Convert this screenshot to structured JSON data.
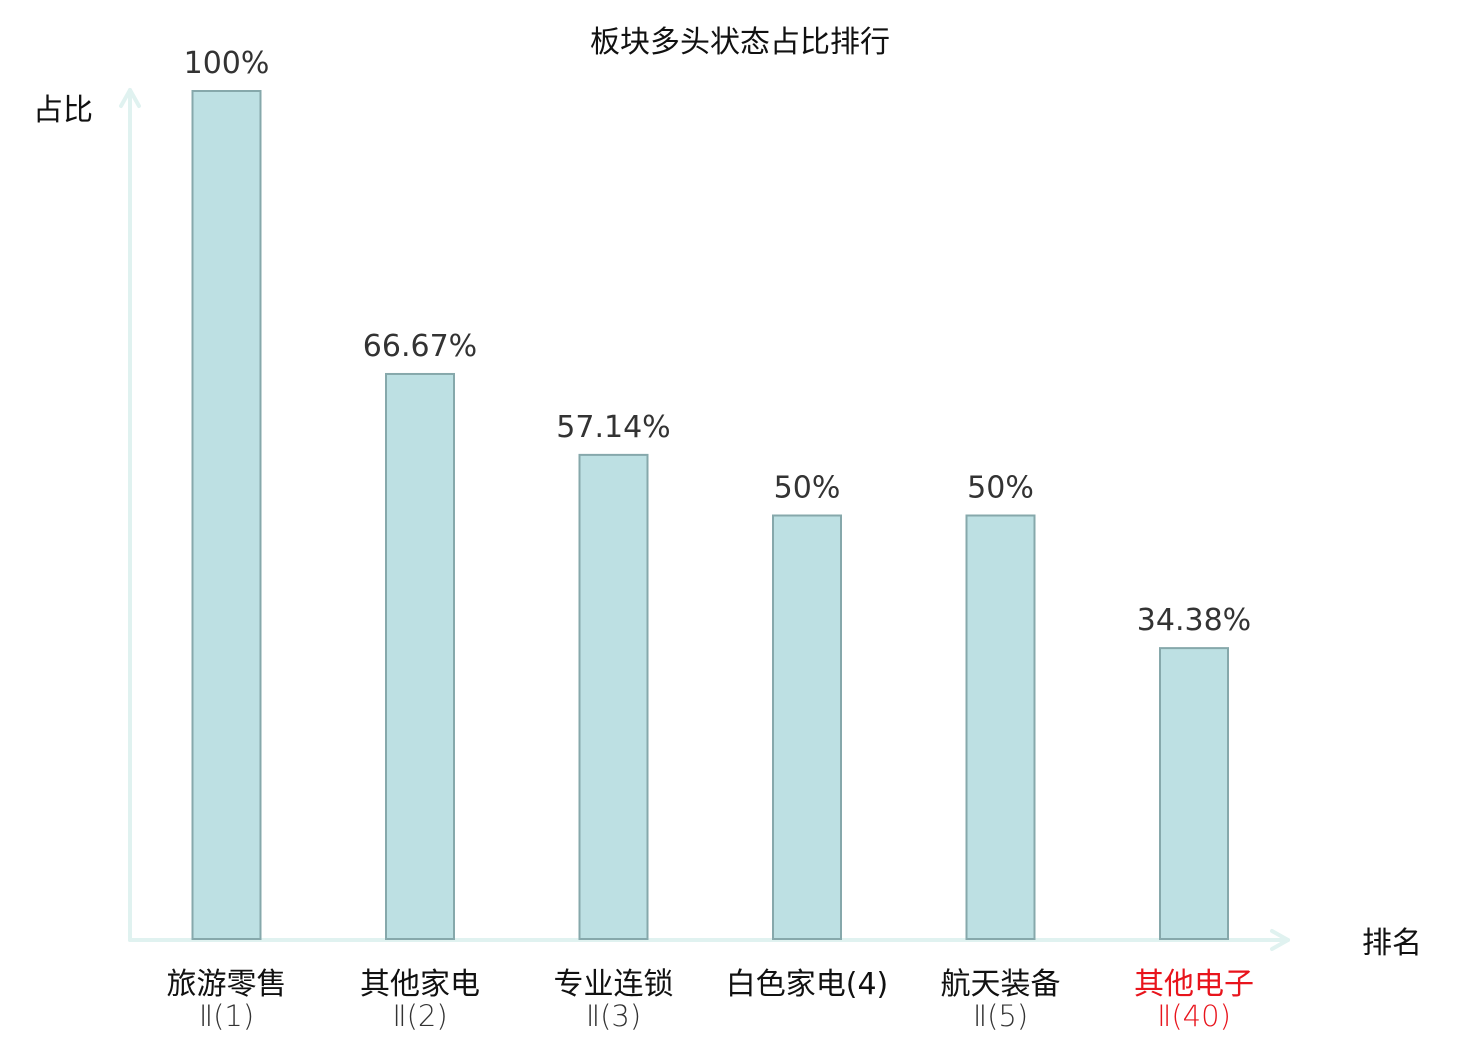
{
  "chart_data": {
    "type": "bar",
    "title": "板块多头状态占比排行",
    "ylabel": "占比",
    "xlabel": "排名",
    "ylim": [
      0,
      100
    ],
    "grid": false,
    "legend": "none",
    "categories": [
      {
        "line1": "旅游零售",
        "line2": "Ⅱ(1)",
        "highlight": false
      },
      {
        "line1": "其他家电",
        "line2": "Ⅱ(2)",
        "highlight": false
      },
      {
        "line1": "专业连锁",
        "line2": "Ⅱ(3)",
        "highlight": false
      },
      {
        "line1": "白色家电(4)",
        "line2": "",
        "highlight": false
      },
      {
        "line1": "航天装备",
        "line2": "Ⅱ(5)",
        "highlight": false
      },
      {
        "line1": "其他电子",
        "line2": "Ⅱ(40)",
        "highlight": true
      }
    ],
    "values": [
      100,
      66.67,
      57.14,
      50,
      50,
      34.38
    ],
    "value_labels": [
      "100%",
      "66.67%",
      "57.14%",
      "50%",
      "50%",
      "34.38%"
    ],
    "colors": {
      "bar_fill": "#bde0e3",
      "bar_stroke": "#86a8ab",
      "axis": "#e0f2f0",
      "text": "#111111",
      "value_text": "#333333",
      "highlight": "#e8141c"
    }
  }
}
